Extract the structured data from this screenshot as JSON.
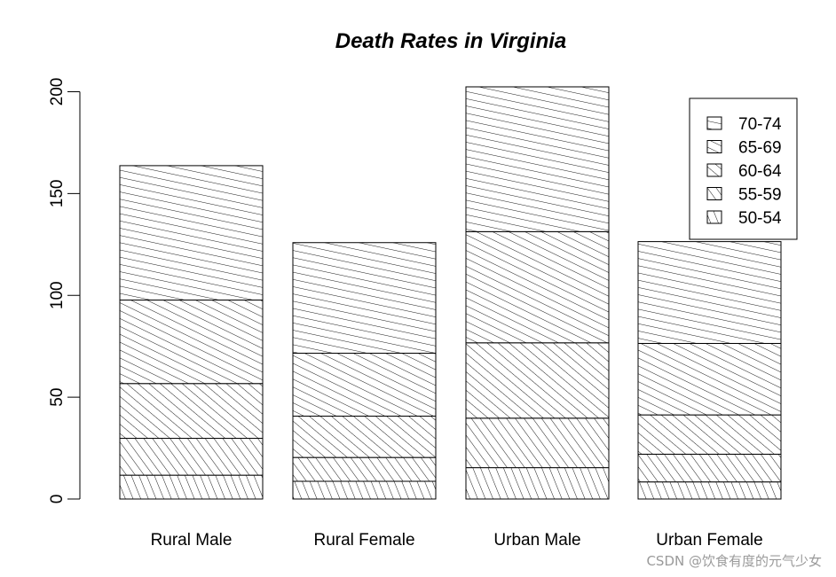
{
  "chart_data": {
    "type": "bar",
    "stacked": true,
    "title": "Death Rates in Virginia",
    "xlabel": "",
    "ylabel": "",
    "ylim": [
      0,
      200
    ],
    "yticks": [
      "0",
      "50",
      "100",
      "150",
      "200"
    ],
    "categories": [
      "Rural Male",
      "Rural Female",
      "Urban Male",
      "Urban Female"
    ],
    "series": [
      {
        "name": "50-54",
        "values": [
          11.7,
          8.7,
          15.4,
          8.4
        ]
      },
      {
        "name": "55-59",
        "values": [
          18.1,
          11.7,
          24.3,
          13.6
        ]
      },
      {
        "name": "60-64",
        "values": [
          26.9,
          20.3,
          37.0,
          19.3
        ]
      },
      {
        "name": "65-69",
        "values": [
          41.0,
          30.9,
          54.6,
          35.1
        ]
      },
      {
        "name": "70-74",
        "values": [
          66.0,
          54.3,
          71.1,
          50.0
        ]
      }
    ],
    "legend_order": [
      "70-74",
      "65-69",
      "60-64",
      "55-59",
      "50-54"
    ],
    "legend_position": "top-right",
    "grid": false,
    "fill_style": "hatched"
  },
  "watermark": "CSDN @饮食有度的元气少女",
  "colors": {
    "stroke": "#000000",
    "background": "#ffffff",
    "watermark": "#9a9a9a"
  }
}
